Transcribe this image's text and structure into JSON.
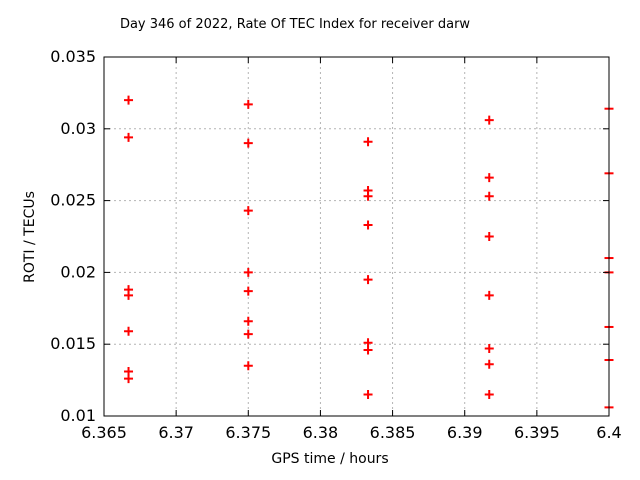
{
  "chart_data": {
    "type": "scatter",
    "title": "Day 346 of 2022, Rate Of TEC Index for receiver darw",
    "xlabel": "GPS time / hours",
    "ylabel": "ROTI / TECUs",
    "xlim": [
      6.365,
      6.4
    ],
    "ylim": [
      0.01,
      0.035
    ],
    "grid": true,
    "legend": false,
    "xticks": {
      "values": [
        6.365,
        6.37,
        6.375,
        6.38,
        6.385,
        6.39,
        6.395,
        6.4
      ],
      "labels": [
        "6.365",
        "6.37",
        "6.375",
        "6.38",
        "6.385",
        "6.39",
        "6.395",
        "6.4"
      ]
    },
    "yticks": {
      "values": [
        0.01,
        0.015,
        0.02,
        0.025,
        0.03,
        0.035
      ],
      "labels": [
        "0.01",
        "0.015",
        "0.02",
        "0.025",
        "0.03",
        "0.035"
      ]
    },
    "series": [
      {
        "name": "ROTI",
        "marker": "plus",
        "color": "#ff0000",
        "points": [
          {
            "x": 6.3667,
            "y": 0.032
          },
          {
            "x": 6.3667,
            "y": 0.0294
          },
          {
            "x": 6.3667,
            "y": 0.0188
          },
          {
            "x": 6.3667,
            "y": 0.0184
          },
          {
            "x": 6.3667,
            "y": 0.0159
          },
          {
            "x": 6.3667,
            "y": 0.0131
          },
          {
            "x": 6.3667,
            "y": 0.0126
          },
          {
            "x": 6.375,
            "y": 0.0317
          },
          {
            "x": 6.375,
            "y": 0.029
          },
          {
            "x": 6.375,
            "y": 0.0243
          },
          {
            "x": 6.375,
            "y": 0.02
          },
          {
            "x": 6.375,
            "y": 0.0187
          },
          {
            "x": 6.375,
            "y": 0.0166
          },
          {
            "x": 6.375,
            "y": 0.0157
          },
          {
            "x": 6.375,
            "y": 0.0135
          },
          {
            "x": 6.3833,
            "y": 0.0291
          },
          {
            "x": 6.3833,
            "y": 0.0257
          },
          {
            "x": 6.3833,
            "y": 0.0253
          },
          {
            "x": 6.3833,
            "y": 0.0233
          },
          {
            "x": 6.3833,
            "y": 0.0195
          },
          {
            "x": 6.3833,
            "y": 0.0151
          },
          {
            "x": 6.3833,
            "y": 0.0146
          },
          {
            "x": 6.3833,
            "y": 0.0115
          },
          {
            "x": 6.3917,
            "y": 0.0306
          },
          {
            "x": 6.3917,
            "y": 0.0266
          },
          {
            "x": 6.3917,
            "y": 0.0253
          },
          {
            "x": 6.3917,
            "y": 0.0225
          },
          {
            "x": 6.3917,
            "y": 0.0184
          },
          {
            "x": 6.3917,
            "y": 0.0147
          },
          {
            "x": 6.3917,
            "y": 0.0136
          },
          {
            "x": 6.3917,
            "y": 0.0115
          },
          {
            "x": 6.4,
            "y": 0.0314
          },
          {
            "x": 6.4,
            "y": 0.0269
          },
          {
            "x": 6.4,
            "y": 0.021
          },
          {
            "x": 6.4,
            "y": 0.02
          },
          {
            "x": 6.4,
            "y": 0.0162
          },
          {
            "x": 6.4,
            "y": 0.0139
          },
          {
            "x": 6.4,
            "y": 0.0106
          }
        ]
      }
    ],
    "colors": {
      "marker": "#ff0000",
      "grid": "#b4b4b4",
      "axis": "#000000",
      "background": "#ffffff"
    }
  }
}
